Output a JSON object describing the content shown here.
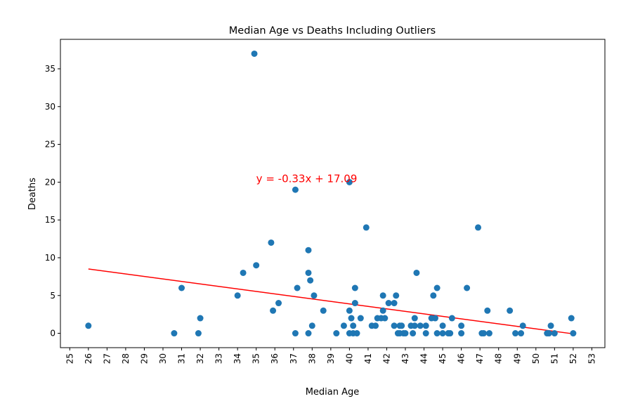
{
  "chart_data": {
    "type": "scatter",
    "title": "Median Age vs Deaths Including Outliers",
    "xlabel": "Median Age",
    "ylabel": "Deaths",
    "xlim": [
      24.5,
      53.7
    ],
    "ylim": [
      -1.9,
      38.9
    ],
    "xticks": [
      25,
      26,
      27,
      28,
      29,
      30,
      31,
      32,
      33,
      34,
      35,
      36,
      37,
      38,
      39,
      40,
      41,
      42,
      43,
      44,
      45,
      46,
      47,
      48,
      49,
      50,
      51,
      52,
      53
    ],
    "yticks": [
      0,
      5,
      10,
      15,
      20,
      25,
      30,
      35
    ],
    "grid": false,
    "colors": {
      "points": "#1f77b4",
      "regression": "#ff0000"
    },
    "points": [
      [
        26.0,
        1
      ],
      [
        30.6,
        0
      ],
      [
        31.0,
        6
      ],
      [
        31.9,
        0
      ],
      [
        32.0,
        2
      ],
      [
        34.0,
        5
      ],
      [
        34.3,
        8
      ],
      [
        34.9,
        37
      ],
      [
        35.0,
        9
      ],
      [
        35.8,
        12
      ],
      [
        35.9,
        3
      ],
      [
        36.2,
        4
      ],
      [
        37.1,
        19
      ],
      [
        37.1,
        0
      ],
      [
        37.2,
        6
      ],
      [
        37.8,
        11
      ],
      [
        37.8,
        8
      ],
      [
        37.8,
        0
      ],
      [
        37.9,
        7
      ],
      [
        38.0,
        1
      ],
      [
        38.1,
        5
      ],
      [
        38.6,
        3
      ],
      [
        39.3,
        0
      ],
      [
        39.7,
        1
      ],
      [
        40.0,
        20
      ],
      [
        40.0,
        3
      ],
      [
        40.0,
        0
      ],
      [
        40.1,
        2
      ],
      [
        40.2,
        1
      ],
      [
        40.2,
        0
      ],
      [
        40.3,
        6
      ],
      [
        40.3,
        4
      ],
      [
        40.4,
        0
      ],
      [
        40.6,
        2
      ],
      [
        40.9,
        14
      ],
      [
        41.2,
        1
      ],
      [
        41.4,
        1
      ],
      [
        41.5,
        2
      ],
      [
        41.7,
        2
      ],
      [
        41.8,
        5
      ],
      [
        41.8,
        3
      ],
      [
        41.9,
        2
      ],
      [
        42.1,
        4
      ],
      [
        42.4,
        1
      ],
      [
        42.5,
        5
      ],
      [
        42.4,
        4
      ],
      [
        42.6,
        0
      ],
      [
        42.7,
        1
      ],
      [
        42.7,
        0
      ],
      [
        42.8,
        1
      ],
      [
        42.9,
        0
      ],
      [
        43.0,
        0
      ],
      [
        43.3,
        1
      ],
      [
        43.4,
        0
      ],
      [
        43.5,
        1
      ],
      [
        43.5,
        2
      ],
      [
        43.6,
        8
      ],
      [
        43.8,
        1
      ],
      [
        44.1,
        0
      ],
      [
        44.1,
        1
      ],
      [
        44.4,
        2
      ],
      [
        44.5,
        5
      ],
      [
        44.6,
        2
      ],
      [
        44.7,
        6
      ],
      [
        44.7,
        0
      ],
      [
        45.0,
        1
      ],
      [
        45.0,
        0
      ],
      [
        45.3,
        0
      ],
      [
        45.5,
        2
      ],
      [
        45.4,
        0
      ],
      [
        46.0,
        1
      ],
      [
        46.0,
        0
      ],
      [
        46.3,
        6
      ],
      [
        46.9,
        14
      ],
      [
        47.1,
        0
      ],
      [
        47.2,
        0
      ],
      [
        47.4,
        3
      ],
      [
        47.5,
        0
      ],
      [
        48.6,
        3
      ],
      [
        48.9,
        0
      ],
      [
        49.2,
        0
      ],
      [
        49.3,
        1
      ],
      [
        50.6,
        0
      ],
      [
        50.7,
        0
      ],
      [
        50.8,
        1
      ],
      [
        51.0,
        0
      ],
      [
        51.9,
        2
      ],
      [
        52.0,
        0
      ]
    ],
    "regression": {
      "slope": -0.33,
      "intercept": 17.09,
      "x_range": [
        26.0,
        52.0
      ],
      "label": "y = -0.33x + 17.09",
      "label_x": 35.0,
      "label_y": 20.0
    }
  }
}
